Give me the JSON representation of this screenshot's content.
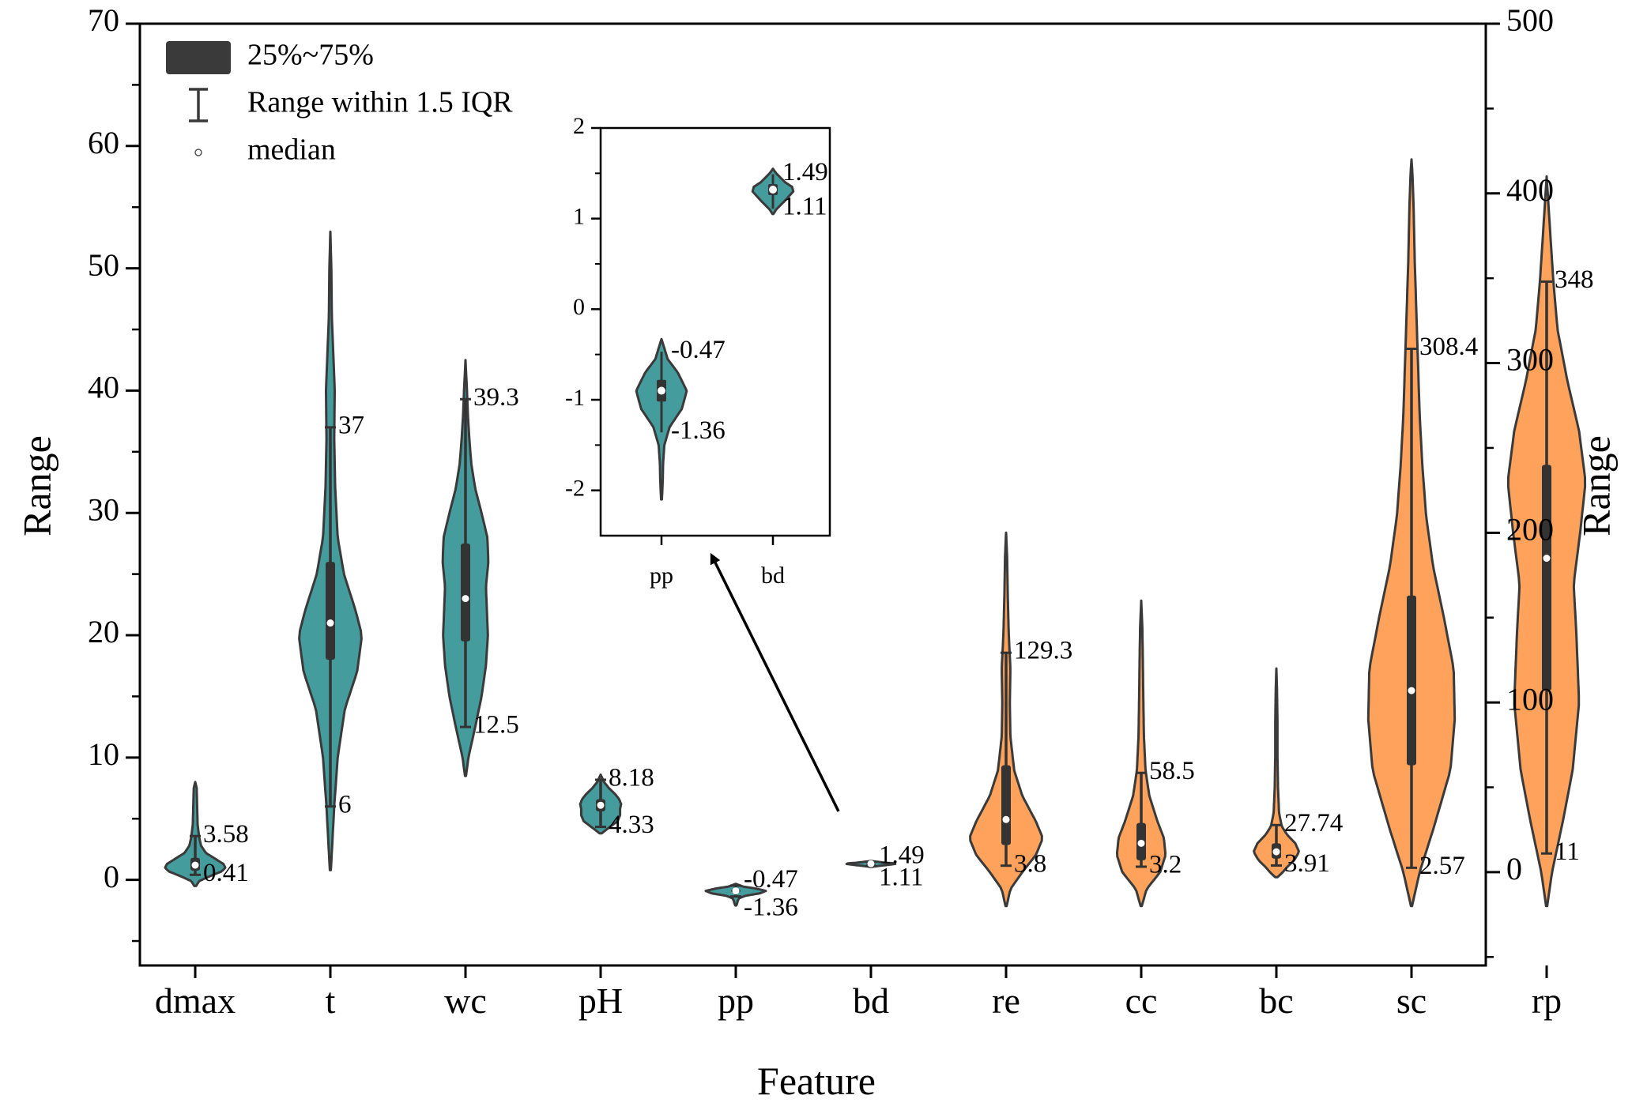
{
  "chart_data": {
    "type": "violin",
    "xlabel": "Feature",
    "ylabel_left": "Range",
    "ylabel_right": "Range",
    "ylim_left": [
      -7,
      70
    ],
    "ylim_right": [
      -55,
      500
    ],
    "yticks_left": [
      0,
      10,
      20,
      30,
      40,
      50,
      60,
      70
    ],
    "yticks_right": [
      0,
      100,
      200,
      300,
      400,
      500
    ],
    "colors": {
      "teal": "#459c9c",
      "orange": "#ffa35c",
      "outline": "#3a3a3a",
      "box": "#333333"
    },
    "legend": {
      "position": "top-left",
      "entries": [
        {
          "label": "25%~75%",
          "kind": "box"
        },
        {
          "label": "Range within 1.5 IQR",
          "kind": "whisker"
        },
        {
          "label": "median",
          "kind": "median"
        }
      ]
    },
    "violins": [
      {
        "name": "dmax",
        "axis": "left",
        "color": "teal",
        "median": 1.2,
        "q1": 0.75,
        "q3": 1.8,
        "wlow": 0.41,
        "whigh": 3.58,
        "ymin": -0.5,
        "ymax": 8,
        "halfwidth": 0.36,
        "profile": [
          [
            -0.5,
            0.02
          ],
          [
            -0.1,
            0.08
          ],
          [
            0.3,
            0.3
          ],
          [
            0.7,
            0.55
          ],
          [
            1.0,
            0.62
          ],
          [
            1.3,
            0.58
          ],
          [
            1.7,
            0.42
          ],
          [
            2.2,
            0.22
          ],
          [
            2.8,
            0.12
          ],
          [
            3.5,
            0.08
          ],
          [
            4.5,
            0.05
          ],
          [
            6,
            0.04
          ],
          [
            7.5,
            0.03
          ],
          [
            8,
            0
          ]
        ],
        "labels": [
          {
            "text": "3.58",
            "at": 3.58
          },
          {
            "text": "0.41",
            "at": 0.41
          }
        ]
      },
      {
        "name": "t",
        "axis": "left",
        "color": "teal",
        "median": 21,
        "q1": 18,
        "q3": 26,
        "wlow": 6,
        "whigh": 37,
        "ymin": 0.8,
        "ymax": 53,
        "halfwidth": 0.36,
        "profile": [
          [
            0.8,
            0.01
          ],
          [
            3,
            0.04
          ],
          [
            6,
            0.08
          ],
          [
            10,
            0.15
          ],
          [
            14,
            0.3
          ],
          [
            17,
            0.55
          ],
          [
            20,
            0.65
          ],
          [
            22,
            0.52
          ],
          [
            25,
            0.28
          ],
          [
            28,
            0.15
          ],
          [
            32,
            0.1
          ],
          [
            36,
            0.08
          ],
          [
            40,
            0.09
          ],
          [
            43,
            0.06
          ],
          [
            46,
            0.03
          ],
          [
            50,
            0.02
          ],
          [
            53,
            0
          ]
        ],
        "labels": [
          {
            "text": "37",
            "at": 37
          },
          {
            "text": "6",
            "at": 6
          }
        ]
      },
      {
        "name": "wc",
        "axis": "left",
        "color": "teal",
        "median": 23,
        "q1": 19.5,
        "q3": 27.5,
        "wlow": 12.5,
        "whigh": 39.3,
        "ymin": 8.5,
        "ymax": 42.5,
        "halfwidth": 0.36,
        "profile": [
          [
            8.5,
            0.01
          ],
          [
            10,
            0.06
          ],
          [
            12.5,
            0.2
          ],
          [
            15,
            0.33
          ],
          [
            17.5,
            0.42
          ],
          [
            20,
            0.46
          ],
          [
            22,
            0.44
          ],
          [
            24,
            0.42
          ],
          [
            26,
            0.47
          ],
          [
            28,
            0.45
          ],
          [
            30,
            0.33
          ],
          [
            32,
            0.2
          ],
          [
            34,
            0.12
          ],
          [
            36,
            0.08
          ],
          [
            38,
            0.05
          ],
          [
            40,
            0.03
          ],
          [
            42.5,
            0
          ]
        ],
        "labels": [
          {
            "text": "39.3",
            "at": 39.3
          },
          {
            "text": "12.5",
            "at": 12.5
          }
        ]
      },
      {
        "name": "pH",
        "axis": "left",
        "color": "teal",
        "median": 6.1,
        "q1": 5.6,
        "q3": 6.6,
        "wlow": 4.33,
        "whigh": 8.18,
        "ymin": 3.8,
        "ymax": 8.6,
        "halfwidth": 0.36,
        "profile": [
          [
            3.8,
            0.02
          ],
          [
            4.2,
            0.15
          ],
          [
            4.8,
            0.35
          ],
          [
            5.3,
            0.4
          ],
          [
            5.8,
            0.4
          ],
          [
            6.2,
            0.42
          ],
          [
            6.6,
            0.38
          ],
          [
            7.0,
            0.3
          ],
          [
            7.5,
            0.17
          ],
          [
            8.0,
            0.07
          ],
          [
            8.6,
            0
          ]
        ],
        "labels": [
          {
            "text": "8.18",
            "at": 8.18
          },
          {
            "text": "4.33",
            "at": 4.33
          }
        ]
      },
      {
        "name": "pp",
        "axis": "left",
        "color": "teal",
        "median": -0.9,
        "q1": -1.02,
        "q3": -0.78,
        "wlow": -1.36,
        "whigh": -0.47,
        "ymin": -2.1,
        "ymax": -0.33,
        "halfwidth": 0.36,
        "profile": [
          [
            -2.1,
            0.01
          ],
          [
            -1.9,
            0.03
          ],
          [
            -1.7,
            0.04
          ],
          [
            -1.5,
            0.07
          ],
          [
            -1.3,
            0.2
          ],
          [
            -1.1,
            0.5
          ],
          [
            -0.9,
            0.62
          ],
          [
            -0.7,
            0.4
          ],
          [
            -0.55,
            0.15
          ],
          [
            -0.4,
            0.05
          ],
          [
            -0.33,
            0
          ]
        ],
        "labels": [
          {
            "text": "-0.47",
            "at": -0.47
          },
          {
            "text": "-1.36",
            "at": -1.36
          }
        ]
      },
      {
        "name": "bd",
        "axis": "left",
        "color": "teal",
        "median": 1.32,
        "q1": 1.26,
        "q3": 1.38,
        "wlow": 1.11,
        "whigh": 1.49,
        "ymin": 1.05,
        "ymax": 1.55,
        "halfwidth": 0.36,
        "profile": [
          [
            1.05,
            0.01
          ],
          [
            1.1,
            0.08
          ],
          [
            1.2,
            0.3
          ],
          [
            1.3,
            0.5
          ],
          [
            1.35,
            0.47
          ],
          [
            1.4,
            0.3
          ],
          [
            1.5,
            0.08
          ],
          [
            1.55,
            0
          ]
        ],
        "labels": [
          {
            "text": "1.49",
            "at": 1.49
          },
          {
            "text": "1.11",
            "at": 1.11
          }
        ]
      },
      {
        "name": "re",
        "axis": "right",
        "color": "orange",
        "median": 31,
        "q1": 16,
        "q3": 63,
        "wlow": 3.8,
        "whigh": 129.3,
        "ymin": -20,
        "ymax": 200,
        "halfwidth": 0.4,
        "profile": [
          [
            -20,
            0.01
          ],
          [
            -10,
            0.08
          ],
          [
            0,
            0.3
          ],
          [
            10,
            0.55
          ],
          [
            20,
            0.68
          ],
          [
            30,
            0.55
          ],
          [
            45,
            0.3
          ],
          [
            60,
            0.15
          ],
          [
            80,
            0.08
          ],
          [
            100,
            0.07
          ],
          [
            120,
            0.08
          ],
          [
            140,
            0.05
          ],
          [
            165,
            0.03
          ],
          [
            185,
            0.02
          ],
          [
            200,
            0
          ]
        ],
        "labels": [
          {
            "text": "129.3",
            "at": 129.3
          },
          {
            "text": "3.8",
            "at": 3.8
          }
        ]
      },
      {
        "name": "cc",
        "axis": "right",
        "color": "orange",
        "median": 17,
        "q1": 7,
        "q3": 29,
        "wlow": 3.2,
        "whigh": 58.5,
        "ymin": -20,
        "ymax": 160,
        "halfwidth": 0.4,
        "profile": [
          [
            -20,
            0.01
          ],
          [
            -10,
            0.1
          ],
          [
            0,
            0.35
          ],
          [
            10,
            0.45
          ],
          [
            20,
            0.42
          ],
          [
            30,
            0.3
          ],
          [
            45,
            0.15
          ],
          [
            60,
            0.08
          ],
          [
            80,
            0.05
          ],
          [
            100,
            0.04
          ],
          [
            125,
            0.03
          ],
          [
            145,
            0.02
          ],
          [
            160,
            0
          ]
        ],
        "labels": [
          {
            "text": "58.5",
            "at": 58.5
          },
          {
            "text": "3.2",
            "at": 3.2
          }
        ]
      },
      {
        "name": "bc",
        "axis": "right",
        "color": "orange",
        "median": 12,
        "q1": 8,
        "q3": 17,
        "wlow": 3.91,
        "whigh": 27.74,
        "ymin": -3,
        "ymax": 120,
        "halfwidth": 0.4,
        "profile": [
          [
            -3,
            0.02
          ],
          [
            0,
            0.12
          ],
          [
            3,
            0.2
          ],
          [
            7,
            0.33
          ],
          [
            12,
            0.42
          ],
          [
            17,
            0.35
          ],
          [
            22,
            0.2
          ],
          [
            27,
            0.1
          ],
          [
            35,
            0.05
          ],
          [
            50,
            0.03
          ],
          [
            70,
            0.02
          ],
          [
            90,
            0.02
          ],
          [
            110,
            0.01
          ],
          [
            120,
            0
          ]
        ],
        "labels": [
          {
            "text": "27.74",
            "at": 27.74
          },
          {
            "text": "3.91",
            "at": 3.91
          }
        ]
      },
      {
        "name": "sc",
        "axis": "right",
        "color": "orange",
        "median": 107,
        "q1": 63,
        "q3": 163,
        "wlow": 2.57,
        "whigh": 308.4,
        "ymin": -20,
        "ymax": 420,
        "halfwidth": 0.4,
        "profile": [
          [
            -20,
            0.01
          ],
          [
            0,
            0.15
          ],
          [
            25,
            0.4
          ],
          [
            60,
            0.72
          ],
          [
            90,
            0.8
          ],
          [
            120,
            0.78
          ],
          [
            150,
            0.6
          ],
          [
            180,
            0.4
          ],
          [
            210,
            0.27
          ],
          [
            240,
            0.2
          ],
          [
            270,
            0.15
          ],
          [
            300,
            0.12
          ],
          [
            330,
            0.09
          ],
          [
            360,
            0.06
          ],
          [
            390,
            0.04
          ],
          [
            410,
            0.02
          ],
          [
            420,
            0
          ]
        ],
        "labels": [
          {
            "text": "308.4",
            "at": 308.4
          },
          {
            "text": "2.57",
            "at": 2.57
          }
        ]
      },
      {
        "name": "rp",
        "axis": "right",
        "color": "orange",
        "median": 185,
        "q1": 107,
        "q3": 240,
        "wlow": 11,
        "whigh": 348,
        "ymin": -20,
        "ymax": 410,
        "halfwidth": 0.4,
        "profile": [
          [
            -20,
            0.01
          ],
          [
            0,
            0.1
          ],
          [
            30,
            0.3
          ],
          [
            60,
            0.48
          ],
          [
            100,
            0.6
          ],
          [
            140,
            0.55
          ],
          [
            170,
            0.5
          ],
          [
            200,
            0.62
          ],
          [
            230,
            0.72
          ],
          [
            260,
            0.6
          ],
          [
            290,
            0.38
          ],
          [
            320,
            0.2
          ],
          [
            350,
            0.12
          ],
          [
            380,
            0.06
          ],
          [
            400,
            0.02
          ],
          [
            410,
            0
          ]
        ],
        "labels": [
          {
            "text": "348",
            "at": 348
          },
          {
            "text": "11",
            "at": 11
          }
        ]
      }
    ],
    "inset": {
      "categories": [
        "pp",
        "bd"
      ],
      "ylim": [
        -2.5,
        2
      ],
      "yticks": [
        -2,
        -1,
        0,
        1,
        2
      ],
      "arrow_from": "bd",
      "violins": [
        {
          "name": "pp",
          "labels": [
            {
              "text": "-0.47",
              "at": -0.47
            },
            {
              "text": "-1.36",
              "at": -1.36
            }
          ]
        },
        {
          "name": "bd",
          "labels": [
            {
              "text": "1.49",
              "at": 1.49
            },
            {
              "text": "1.11",
              "at": 1.11
            }
          ]
        }
      ]
    }
  }
}
